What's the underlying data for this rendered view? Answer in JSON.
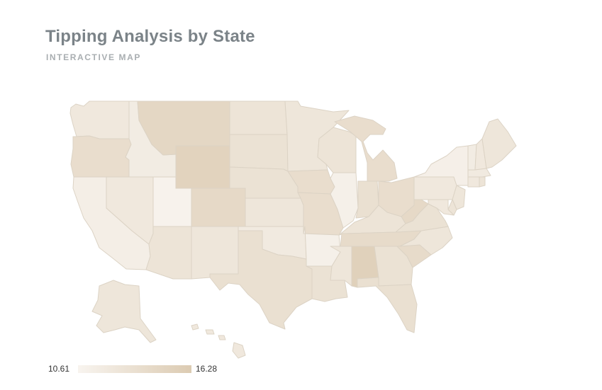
{
  "header": {
    "title": "Tipping Analysis by State",
    "subtitle": "INTERACTIVE MAP"
  },
  "legend": {
    "min_label": "10.61",
    "max_label": "16.28",
    "min_value": 10.61,
    "max_value": 16.28,
    "color_low": "#f8f4ef",
    "color_high": "#dccbb2"
  },
  "colors": {
    "state_border": "#dcd3c5"
  },
  "map_data": {
    "type": "choropleth",
    "region": "United States",
    "metric_range": [
      10.61,
      16.28
    ],
    "shading_level": {
      "WA": 0.3,
      "OR": 0.55,
      "CA": 0.15,
      "ID": 0.2,
      "NV": 0.3,
      "UT": 0.05,
      "AZ": 0.4,
      "MT": 0.7,
      "WY": 0.8,
      "CO": 0.65,
      "NM": 0.35,
      "ND": 0.4,
      "SD": 0.45,
      "NE": 0.45,
      "KS": 0.35,
      "OK": 0.25,
      "TX": 0.5,
      "MN": 0.35,
      "IA": 0.55,
      "MO": 0.55,
      "AR": 0.1,
      "LA": 0.45,
      "WI": 0.4,
      "IL": 0.1,
      "MI": 0.55,
      "IN": 0.5,
      "OH": 0.55,
      "KY": 0.4,
      "TN": 0.6,
      "MS": 0.35,
      "AL": 0.85,
      "GA": 0.45,
      "FL": 0.5,
      "SC": 0.6,
      "NC": 0.35,
      "VA": 0.45,
      "WV": 0.65,
      "PA": 0.3,
      "NY": 0.12,
      "VT": 0.2,
      "NH": 0.3,
      "ME": 0.35,
      "MA": 0.25,
      "CT": 0.3,
      "RI": 0.4,
      "NJ": 0.35,
      "DE": 0.4,
      "MD": 0.3,
      "AK": 0.35,
      "HI": 0.3
    }
  }
}
